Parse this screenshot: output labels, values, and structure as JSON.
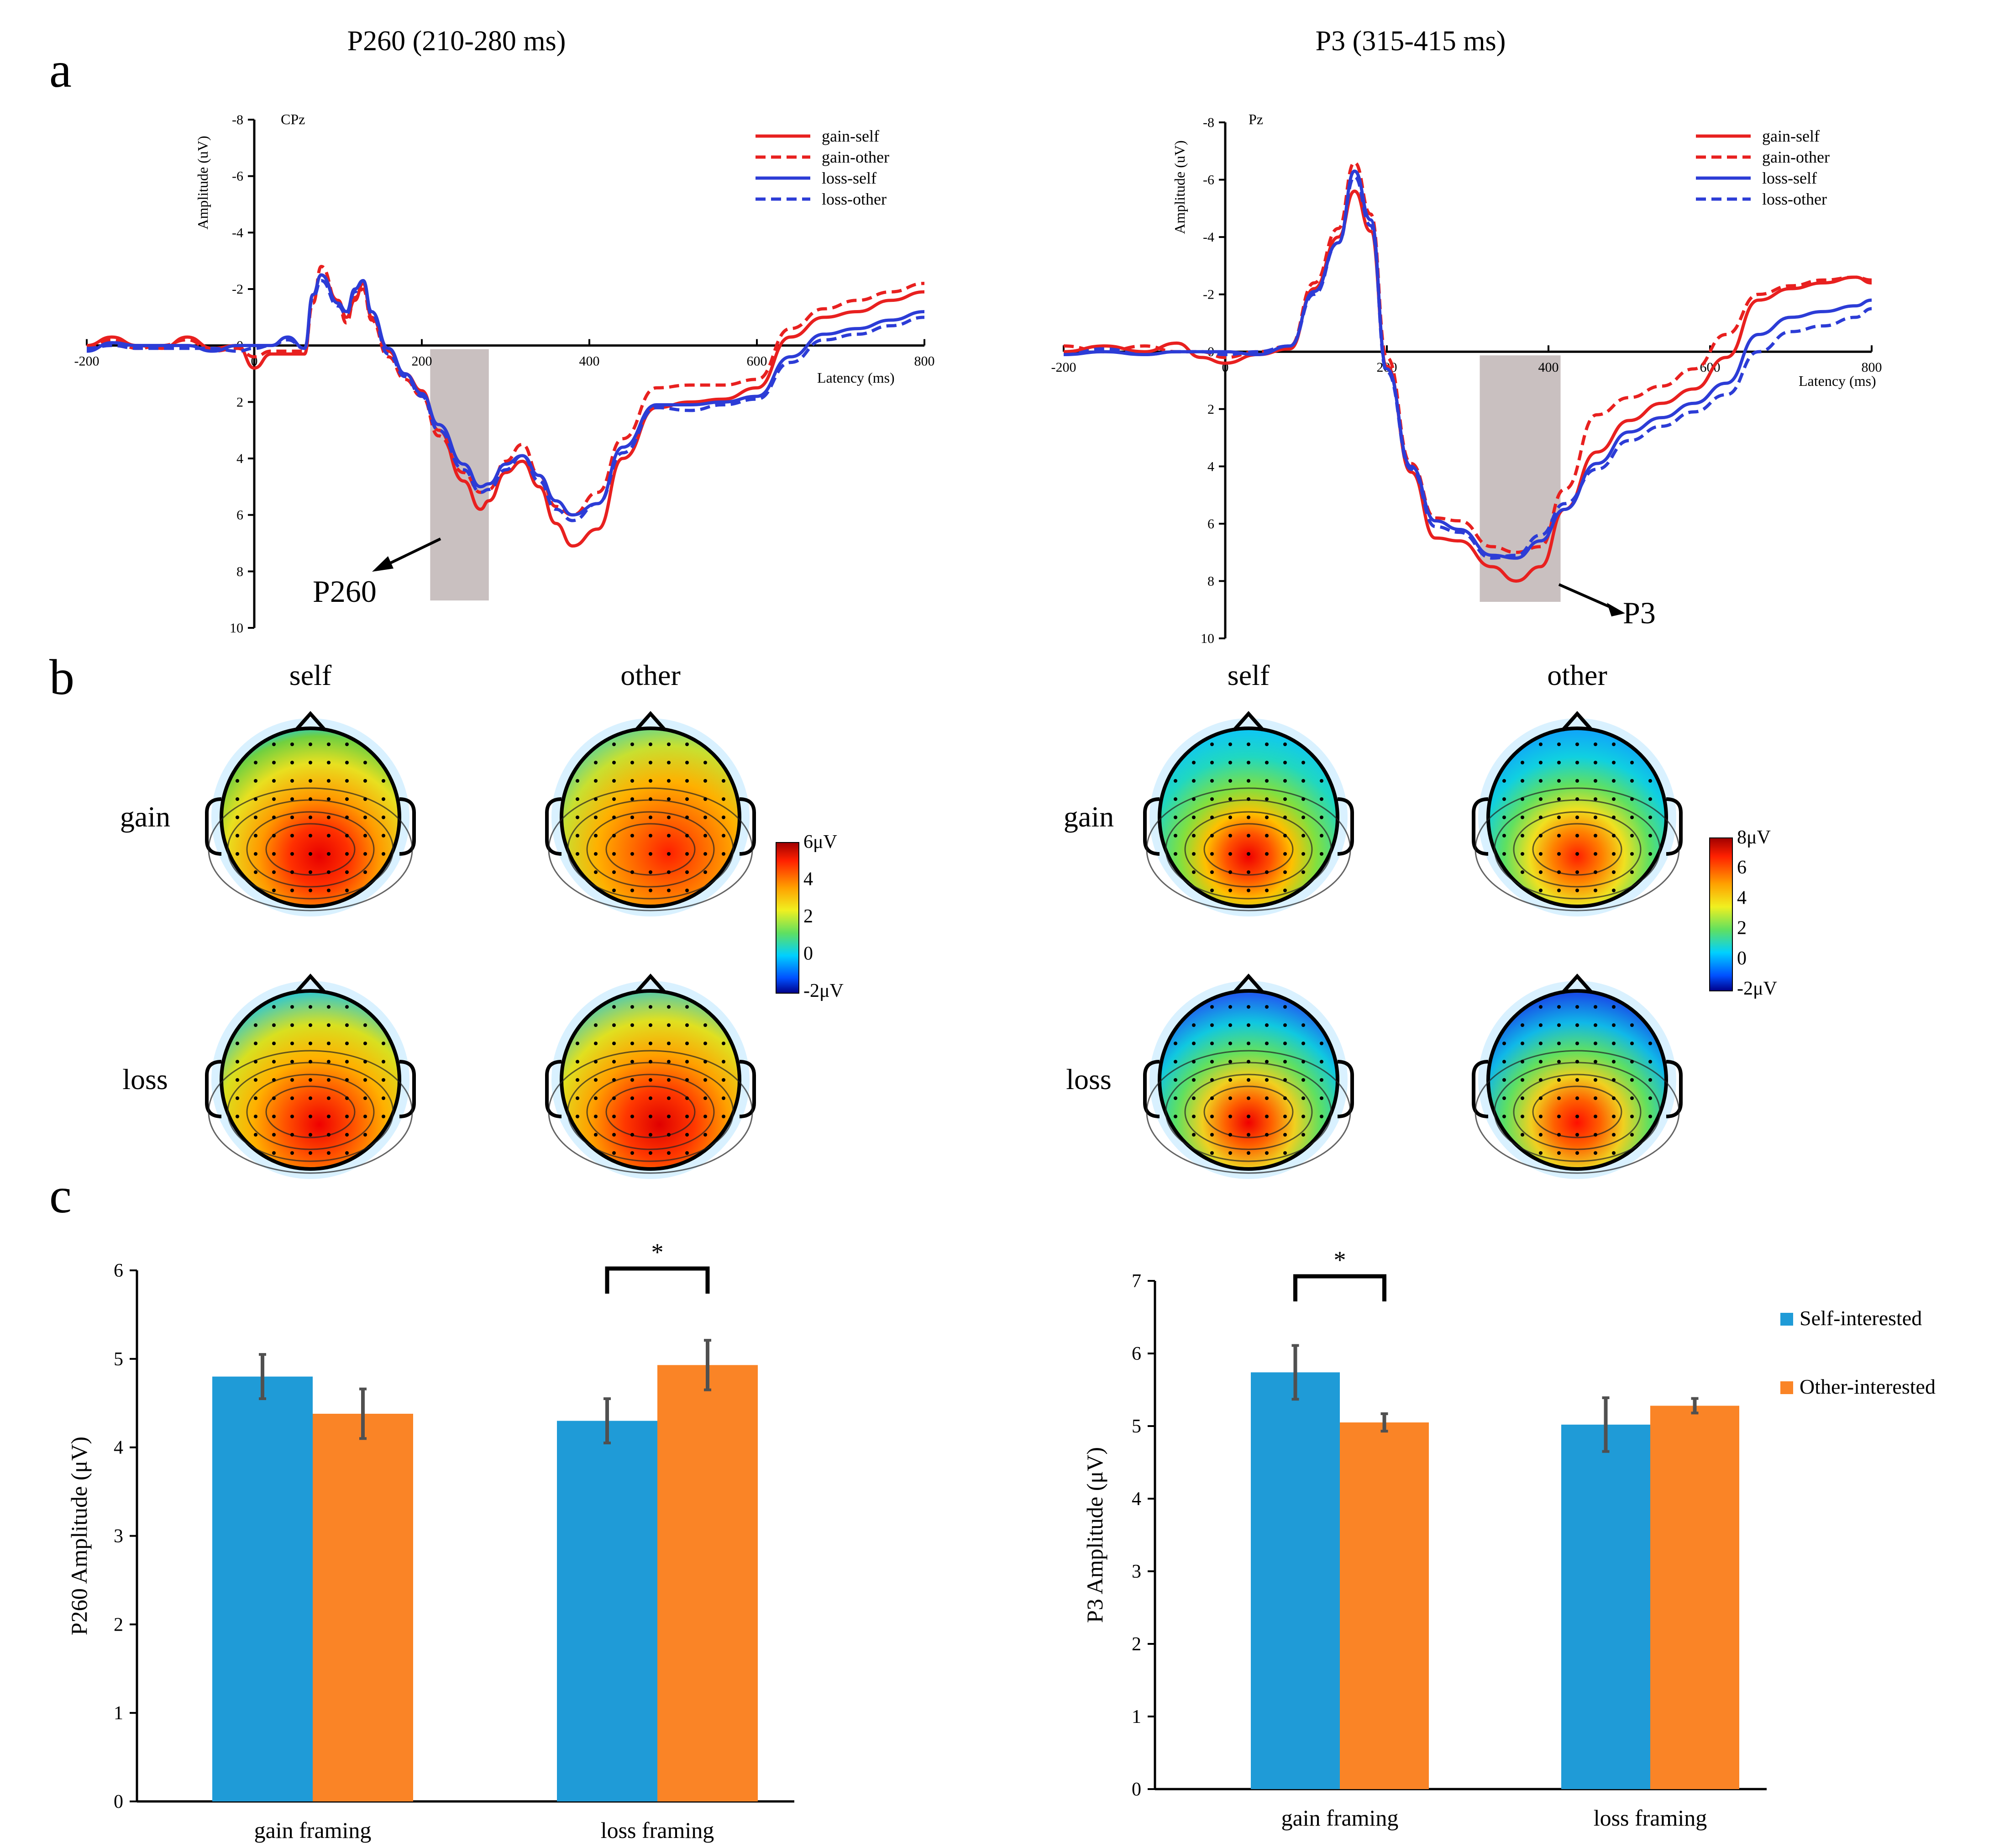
{
  "colors": {
    "red": "#e8201f",
    "blue": "#2c3cd6",
    "self_bar": "#1f9bd7",
    "other_bar": "#fa8426",
    "shade": "#c9c0c0",
    "err": "#505050"
  },
  "panel_labels": {
    "a": "a",
    "b": "b",
    "c": "c"
  },
  "erp_title_left": "P260 (210-280 ms)",
  "erp_title_right": "P3 (315-415 ms)",
  "chart_data": [
    {
      "type": "line",
      "panel": "a-left",
      "electrode": "CPz",
      "xlabel": "Latency (ms)",
      "ylabel": "Amplitude (uV)",
      "xlim": [
        -200,
        800
      ],
      "ylim": [
        -8,
        10
      ],
      "y_axis_inverted": true,
      "x_ticks": [
        "-200",
        "0",
        "200",
        "400",
        "600",
        "800"
      ],
      "y_ticks": [
        "-8",
        "-6",
        "-4",
        "-2",
        "0",
        "2",
        "4",
        "6",
        "8",
        "10"
      ],
      "shaded_window_ms": [
        210,
        280
      ],
      "annotation": "P260",
      "series": [
        {
          "name": "gain-self",
          "x": [
            -200,
            -170,
            -140,
            -110,
            -80,
            -50,
            -20,
            0,
            20,
            40,
            60,
            70,
            80,
            100,
            110,
            120,
            130,
            140,
            160,
            180,
            200,
            220,
            250,
            270,
            280,
            300,
            320,
            340,
            360,
            380,
            410,
            440,
            480,
            520,
            560,
            600,
            640,
            680,
            720,
            760,
            800
          ],
          "y": [
            0,
            -0.3,
            0,
            0.1,
            -0.3,
            0.1,
            0,
            0.8,
            0.3,
            0.3,
            0.3,
            -1.8,
            -2.5,
            -1.6,
            -1,
            -1.6,
            -2.2,
            -1,
            0.2,
            1,
            1.6,
            3,
            4.8,
            5.8,
            5.5,
            4.5,
            4.1,
            5,
            6.3,
            7.1,
            6.5,
            4,
            2.2,
            2,
            1.9,
            1.5,
            -0.3,
            -1,
            -1.2,
            -1.6,
            -1.9
          ]
        },
        {
          "name": "gain-other",
          "x": [
            -200,
            -170,
            -140,
            -110,
            -80,
            -50,
            -20,
            0,
            20,
            40,
            60,
            70,
            80,
            100,
            110,
            120,
            130,
            140,
            160,
            180,
            200,
            220,
            250,
            270,
            280,
            300,
            320,
            340,
            360,
            380,
            410,
            440,
            480,
            520,
            560,
            600,
            640,
            680,
            720,
            760,
            800
          ],
          "y": [
            0.1,
            -0.2,
            0.1,
            0,
            -0.2,
            0.2,
            0.1,
            0.4,
            0.2,
            0.2,
            0.2,
            -1.5,
            -2.8,
            -1.5,
            -0.8,
            -1.7,
            -2,
            -0.9,
            0.4,
            1.2,
            1.8,
            3.2,
            4.5,
            5.2,
            5.1,
            4.1,
            3.5,
            4.6,
            5.7,
            6,
            5.2,
            3.3,
            1.5,
            1.4,
            1.4,
            1.2,
            -0.6,
            -1.3,
            -1.6,
            -1.9,
            -2.2
          ]
        },
        {
          "name": "loss-self",
          "x": [
            -200,
            -170,
            -140,
            -110,
            -80,
            -50,
            -20,
            0,
            20,
            40,
            60,
            70,
            80,
            100,
            110,
            120,
            130,
            140,
            160,
            180,
            200,
            220,
            250,
            270,
            280,
            300,
            320,
            340,
            360,
            380,
            410,
            440,
            480,
            520,
            560,
            600,
            640,
            680,
            720,
            760,
            800
          ],
          "y": [
            0.2,
            -0.1,
            0,
            0,
            0,
            0.2,
            0,
            0,
            0,
            -0.3,
            0.1,
            -1.8,
            -2.5,
            -1.5,
            -1.2,
            -2,
            -2.3,
            -1.2,
            0.1,
            1,
            1.7,
            2.8,
            4.2,
            5,
            4.9,
            4.2,
            3.9,
            4.6,
            5.5,
            6,
            5.6,
            3.6,
            2.1,
            2.1,
            2,
            1.8,
            0.4,
            -0.4,
            -0.6,
            -0.9,
            -1.2
          ]
        },
        {
          "name": "loss-other",
          "x": [
            -200,
            -170,
            -140,
            -110,
            -80,
            -50,
            -20,
            0,
            20,
            40,
            60,
            70,
            80,
            100,
            110,
            120,
            130,
            140,
            160,
            180,
            200,
            220,
            250,
            270,
            280,
            300,
            320,
            340,
            360,
            380,
            410,
            440,
            480,
            520,
            560,
            600,
            640,
            680,
            720,
            760,
            800
          ],
          "y": [
            0.1,
            0,
            0.1,
            0.1,
            0.1,
            0.1,
            0.2,
            0.1,
            0,
            -0.2,
            0.1,
            -1.7,
            -2.3,
            -1.4,
            -1.1,
            -1.9,
            -2.3,
            -1.1,
            0.3,
            1.1,
            1.8,
            3,
            4.4,
            5.2,
            5.1,
            4.4,
            3.9,
            4.8,
            5.8,
            6.2,
            5.6,
            3.8,
            2.2,
            2.3,
            2.1,
            1.9,
            0.6,
            -0.2,
            -0.4,
            -0.7,
            -1
          ]
        }
      ]
    },
    {
      "type": "line",
      "panel": "a-right",
      "electrode": "Pz",
      "xlabel": "Latency (ms)",
      "ylabel": "Amplitude (uV)",
      "xlim": [
        -200,
        800
      ],
      "ylim": [
        -8,
        10
      ],
      "y_axis_inverted": true,
      "x_ticks": [
        "-200",
        "0",
        "200",
        "400",
        "600",
        "800"
      ],
      "y_ticks": [
        "-8",
        "-6",
        "-4",
        "-2",
        "0",
        "2",
        "4",
        "6",
        "8",
        "10"
      ],
      "shaded_window_ms": [
        315,
        415
      ],
      "annotation": "P3",
      "series": [
        {
          "name": "gain-self",
          "x": [
            -200,
            -150,
            -100,
            -60,
            -30,
            0,
            40,
            80,
            110,
            140,
            160,
            180,
            200,
            230,
            260,
            290,
            330,
            360,
            390,
            420,
            460,
            500,
            540,
            580,
            620,
            660,
            700,
            740,
            780,
            800
          ],
          "y": [
            0,
            -0.2,
            0,
            -0.3,
            0.2,
            0.4,
            0.1,
            -0.1,
            -2.2,
            -4,
            -5.6,
            -4.2,
            0.5,
            4.2,
            6.5,
            6.6,
            7.5,
            8,
            7.5,
            5.5,
            3.5,
            2.4,
            1.8,
            1.3,
            0.2,
            -1.8,
            -2.2,
            -2.4,
            -2.6,
            -2.4
          ]
        },
        {
          "name": "gain-other",
          "x": [
            -200,
            -150,
            -100,
            -60,
            -30,
            0,
            40,
            80,
            110,
            140,
            160,
            180,
            200,
            230,
            260,
            290,
            330,
            360,
            390,
            420,
            460,
            500,
            540,
            580,
            620,
            660,
            700,
            740,
            780,
            800
          ],
          "y": [
            -0.2,
            0,
            -0.2,
            0,
            0,
            0.2,
            0,
            -0.2,
            -2.4,
            -4.3,
            -6.6,
            -4.8,
            0.2,
            3.9,
            5.8,
            5.9,
            6.8,
            7,
            6.8,
            4.8,
            2.2,
            1.6,
            1.2,
            0.6,
            -0.6,
            -2,
            -2.3,
            -2.5,
            -2.6,
            -2.5
          ]
        },
        {
          "name": "loss-self",
          "x": [
            -200,
            -150,
            -100,
            -60,
            -30,
            0,
            40,
            80,
            110,
            140,
            160,
            180,
            200,
            230,
            260,
            290,
            330,
            360,
            390,
            420,
            460,
            500,
            540,
            580,
            620,
            660,
            700,
            740,
            780,
            800
          ],
          "y": [
            0.1,
            0,
            0.1,
            0,
            0,
            0,
            0.1,
            -0.2,
            -2.1,
            -3.8,
            -6.3,
            -4.6,
            0.6,
            4,
            5.9,
            6.2,
            7.1,
            7.2,
            6.6,
            5.5,
            3.9,
            2.8,
            2.3,
            1.8,
            1.1,
            -0.6,
            -1.2,
            -1.4,
            -1.6,
            -1.8
          ]
        },
        {
          "name": "loss-other",
          "x": [
            -200,
            -150,
            -100,
            -60,
            -30,
            0,
            40,
            80,
            110,
            140,
            160,
            180,
            200,
            230,
            260,
            290,
            330,
            360,
            390,
            420,
            460,
            500,
            540,
            580,
            620,
            660,
            700,
            740,
            780,
            800
          ],
          "y": [
            0.1,
            -0.1,
            0.1,
            0,
            0,
            0.1,
            0,
            -0.2,
            -2,
            -3.8,
            -6.1,
            -4.4,
            0.7,
            4.1,
            6.1,
            6.3,
            7.2,
            7.1,
            6.4,
            5.3,
            4.1,
            3.1,
            2.6,
            2.1,
            1.5,
            0,
            -0.7,
            -0.9,
            -1.2,
            -1.5
          ]
        }
      ]
    },
    {
      "type": "bar",
      "panel": "c-left",
      "categories": [
        "gain framing",
        "loss framing"
      ],
      "ylabel": "P260 Amplitude (μV)",
      "ylim": [
        0,
        6
      ],
      "y_ticks": [
        "0",
        "1",
        "2",
        "3",
        "4",
        "5",
        "6"
      ],
      "series": [
        {
          "name": "Self-interested",
          "values": [
            4.8,
            4.3
          ],
          "errors": [
            0.25,
            0.25
          ]
        },
        {
          "name": "Other-interested",
          "values": [
            4.38,
            4.93
          ],
          "errors": [
            0.28,
            0.28
          ]
        }
      ],
      "significance": {
        "category_index": 1,
        "label": "*"
      }
    },
    {
      "type": "bar",
      "panel": "c-right",
      "categories": [
        "gain framing",
        "loss framing"
      ],
      "ylabel": "P3 Amplitude (μV)",
      "ylim": [
        0,
        7
      ],
      "y_ticks": [
        "0",
        "1",
        "2",
        "3",
        "4",
        "5",
        "6",
        "7"
      ],
      "series": [
        {
          "name": "Self-interested",
          "values": [
            5.74,
            5.02
          ],
          "errors": [
            0.37,
            0.37
          ]
        },
        {
          "name": "Other-interested",
          "values": [
            5.05,
            5.28
          ],
          "errors": [
            0.12,
            0.1
          ]
        }
      ],
      "significance": {
        "category_index": 0,
        "label": "*"
      }
    }
  ],
  "topomaps": {
    "left": {
      "col_labels": [
        "self",
        "other"
      ],
      "row_labels": [
        "gain",
        "loss"
      ],
      "colorbar_ticks": [
        "6μV",
        "4",
        "2",
        "0",
        "-2μV"
      ]
    },
    "right": {
      "col_labels": [
        "self",
        "other"
      ],
      "row_labels": [
        "gain",
        "loss"
      ],
      "colorbar_ticks": [
        "8μV",
        "6",
        "4",
        "2",
        "0",
        "-2μV"
      ]
    }
  },
  "bar_legend": [
    "Self-interested",
    "Other-interested"
  ]
}
